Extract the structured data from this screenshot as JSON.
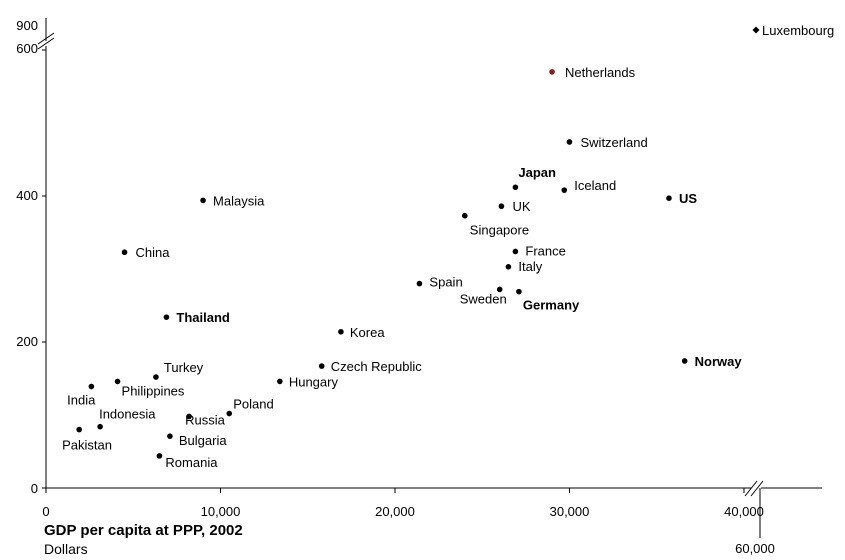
{
  "chart_data": {
    "type": "scatter",
    "xlabel": "GDP per capita at PPP, 2002",
    "xlabel_unit": "Dollars",
    "x_ticks": [
      "0",
      "10,000",
      "20,000",
      "30,000",
      "40,000",
      "60,000"
    ],
    "y_ticks": [
      "0",
      "200",
      "400",
      "600",
      "900"
    ],
    "xlim": [
      0,
      40000
    ],
    "ylim": [
      0,
      600
    ],
    "axis_breaks": {
      "x": [
        40000,
        60000
      ],
      "y": [
        600,
        900
      ]
    },
    "grid": false,
    "points": [
      {
        "label": "Luxembourg",
        "x": 61000,
        "y": 900,
        "bold": false,
        "marker": "diamond",
        "color": "#000000"
      },
      {
        "label": "Netherlands",
        "x": 29000,
        "y": 570,
        "bold": false,
        "marker": "circle",
        "color": "#8b1a1a"
      },
      {
        "label": "Switzerland",
        "x": 30000,
        "y": 474,
        "bold": false,
        "marker": "circle",
        "color": "#000000"
      },
      {
        "label": "Japan",
        "x": 26900,
        "y": 412,
        "bold": true,
        "marker": "circle",
        "color": "#000000"
      },
      {
        "label": "Iceland",
        "x": 29700,
        "y": 408,
        "bold": false,
        "marker": "circle",
        "color": "#000000"
      },
      {
        "label": "US",
        "x": 35700,
        "y": 397,
        "bold": true,
        "marker": "circle",
        "color": "#000000"
      },
      {
        "label": "UK",
        "x": 26100,
        "y": 386,
        "bold": false,
        "marker": "circle",
        "color": "#000000"
      },
      {
        "label": "Singapore",
        "x": 24000,
        "y": 373,
        "bold": false,
        "marker": "circle",
        "color": "#000000"
      },
      {
        "label": "Malaysia",
        "x": 9000,
        "y": 394,
        "bold": false,
        "marker": "circle",
        "color": "#000000"
      },
      {
        "label": "China",
        "x": 4500,
        "y": 323,
        "bold": false,
        "marker": "circle",
        "color": "#000000"
      },
      {
        "label": "France",
        "x": 26900,
        "y": 324,
        "bold": false,
        "marker": "circle",
        "color": "#000000"
      },
      {
        "label": "Italy",
        "x": 26500,
        "y": 303,
        "bold": false,
        "marker": "circle",
        "color": "#000000"
      },
      {
        "label": "Spain",
        "x": 21400,
        "y": 280,
        "bold": false,
        "marker": "circle",
        "color": "#000000"
      },
      {
        "label": "Sweden",
        "x": 26000,
        "y": 272,
        "bold": false,
        "marker": "circle",
        "color": "#000000"
      },
      {
        "label": "Germany",
        "x": 27100,
        "y": 269,
        "bold": true,
        "marker": "circle",
        "color": "#000000"
      },
      {
        "label": "Thailand",
        "x": 6900,
        "y": 234,
        "bold": true,
        "marker": "circle",
        "color": "#000000"
      },
      {
        "label": "Korea",
        "x": 16900,
        "y": 214,
        "bold": false,
        "marker": "circle",
        "color": "#000000"
      },
      {
        "label": "Norway",
        "x": 36600,
        "y": 174,
        "bold": true,
        "marker": "circle",
        "color": "#000000"
      },
      {
        "label": "Czech Republic",
        "x": 15800,
        "y": 167,
        "bold": false,
        "marker": "circle",
        "color": "#000000"
      },
      {
        "label": "Turkey",
        "x": 6300,
        "y": 152,
        "bold": false,
        "marker": "circle",
        "color": "#000000"
      },
      {
        "label": "Hungary",
        "x": 13400,
        "y": 146,
        "bold": false,
        "marker": "circle",
        "color": "#000000"
      },
      {
        "label": "Philippines",
        "x": 4100,
        "y": 146,
        "bold": false,
        "marker": "circle",
        "color": "#000000"
      },
      {
        "label": "India",
        "x": 2600,
        "y": 139,
        "bold": false,
        "marker": "circle",
        "color": "#000000"
      },
      {
        "label": "Poland",
        "x": 10500,
        "y": 102,
        "bold": false,
        "marker": "circle",
        "color": "#000000"
      },
      {
        "label": "Russia",
        "x": 8200,
        "y": 98,
        "bold": false,
        "marker": "circle",
        "color": "#000000"
      },
      {
        "label": "Indonesia",
        "x": 3100,
        "y": 84,
        "bold": false,
        "marker": "circle",
        "color": "#000000"
      },
      {
        "label": "Pakistan",
        "x": 1900,
        "y": 80,
        "bold": false,
        "marker": "circle",
        "color": "#000000"
      },
      {
        "label": "Bulgaria",
        "x": 7100,
        "y": 71,
        "bold": false,
        "marker": "circle",
        "color": "#000000"
      },
      {
        "label": "Romania",
        "x": 6500,
        "y": 44,
        "bold": false,
        "marker": "circle",
        "color": "#000000"
      }
    ]
  }
}
